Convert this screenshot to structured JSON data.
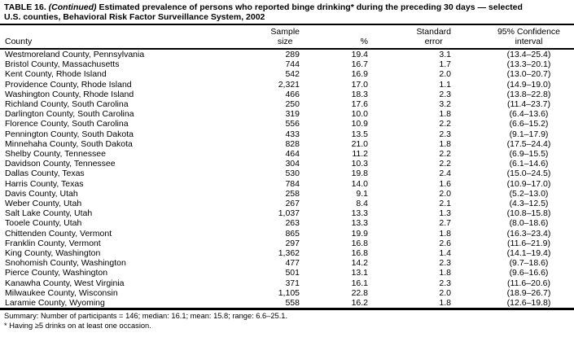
{
  "page": {
    "background": "#ffffff",
    "text_color": "#000000"
  },
  "title": {
    "part1": "TABLE 16. ",
    "continued": "(Continued)",
    "part3": " Estimated prevalence of persons who reported binge drinking* during the preceding 30 days — selected",
    "line2": "U.S. counties, Behavioral Risk Factor Surveillance System, 2002"
  },
  "columns": {
    "county": "County",
    "sample": [
      "Sample",
      "size"
    ],
    "percent": "%",
    "standard_error": [
      "Standard",
      "error"
    ],
    "confidence_interval": [
      "95% Confidence",
      "interval"
    ]
  },
  "rows": [
    {
      "county": "Westmoreland County, Pennsylvania",
      "sample": "289",
      "pct": "19.4",
      "se": "3.1",
      "ci": "(13.4–25.4)"
    },
    {
      "county": "Bristol County, Massachusetts",
      "sample": "744",
      "pct": "16.7",
      "se": "1.7",
      "ci": "(13.3–20.1)"
    },
    {
      "county": "Kent County, Rhode Island",
      "sample": "542",
      "pct": "16.9",
      "se": "2.0",
      "ci": "(13.0–20.7)"
    },
    {
      "county": "Providence County, Rhode Island",
      "sample": "2,321",
      "pct": "17.0",
      "se": "1.1",
      "ci": "(14.9–19.0)"
    },
    {
      "county": "Washington County, Rhode Island",
      "sample": "466",
      "pct": "18.3",
      "se": "2.3",
      "ci": "(13.8–22.8)"
    },
    {
      "county": "Richland County, South Carolina",
      "sample": "250",
      "pct": "17.6",
      "se": "3.2",
      "ci": "(11.4–23.7)"
    },
    {
      "county": "Darlington County, South Carolina",
      "sample": "319",
      "pct": "10.0",
      "se": "1.8",
      "ci": "(6.4–13.6)"
    },
    {
      "county": "Florence County, South Carolina",
      "sample": "556",
      "pct": "10.9",
      "se": "2.2",
      "ci": "(6.6–15.2)"
    },
    {
      "county": "Pennington County, South Dakota",
      "sample": "433",
      "pct": "13.5",
      "se": "2.3",
      "ci": "(9.1–17.9)"
    },
    {
      "county": "Minnehaha County, South Dakota",
      "sample": "828",
      "pct": "21.0",
      "se": "1.8",
      "ci": "(17.5–24.4)"
    },
    {
      "county": "Shelby County, Tennessee",
      "sample": "464",
      "pct": "11.2",
      "se": "2.2",
      "ci": "(6.9–15.5)"
    },
    {
      "county": "Davidson County, Tennessee",
      "sample": "304",
      "pct": "10.3",
      "se": "2.2",
      "ci": "(6.1–14.6)"
    },
    {
      "county": "Dallas County, Texas",
      "sample": "530",
      "pct": "19.8",
      "se": "2.4",
      "ci": "(15.0–24.5)"
    },
    {
      "county": "Harris County, Texas",
      "sample": "784",
      "pct": "14.0",
      "se": "1.6",
      "ci": "(10.9–17.0)"
    },
    {
      "county": "Davis County, Utah",
      "sample": "258",
      "pct": "9.1",
      "se": "2.0",
      "ci": "(5.2–13.0)"
    },
    {
      "county": "Weber County, Utah",
      "sample": "267",
      "pct": "8.4",
      "se": "2.1",
      "ci": "(4.3–12.5)"
    },
    {
      "county": "Salt Lake County, Utah",
      "sample": "1,037",
      "pct": "13.3",
      "se": "1.3",
      "ci": "(10.8–15.8)"
    },
    {
      "county": "Tooele County, Utah",
      "sample": "263",
      "pct": "13.3",
      "se": "2.7",
      "ci": "(8.0–18.6)"
    },
    {
      "county": "Chittenden County, Vermont",
      "sample": "865",
      "pct": "19.9",
      "se": "1.8",
      "ci": "(16.3–23.4)"
    },
    {
      "county": "Franklin County, Vermont",
      "sample": "297",
      "pct": "16.8",
      "se": "2.6",
      "ci": "(11.6–21.9)"
    },
    {
      "county": "King County, Washington",
      "sample": "1,362",
      "pct": "16.8",
      "se": "1.4",
      "ci": "(14.1–19.4)"
    },
    {
      "county": "Snohomish County, Washington",
      "sample": "477",
      "pct": "14.2",
      "se": "2.3",
      "ci": "(9.7–18.6)"
    },
    {
      "county": "Pierce County, Washington",
      "sample": "501",
      "pct": "13.1",
      "se": "1.8",
      "ci": "(9.6–16.6)"
    },
    {
      "county": "Kanawha County, West Virginia",
      "sample": "371",
      "pct": "16.1",
      "se": "2.3",
      "ci": "(11.6–20.6)"
    },
    {
      "county": "Milwaukee County, Wisconsin",
      "sample": "1,105",
      "pct": "22.8",
      "se": "2.0",
      "ci": "(18.9–26.7)"
    },
    {
      "county": "Laramie County, Wyoming",
      "sample": "558",
      "pct": "16.2",
      "se": "1.8",
      "ci": "(12.6–19.8)"
    }
  ],
  "summary": "Summary: Number of participants = 146; median: 16.1; mean: 15.8; range: 6.6–25.1.",
  "footnote": "* Having ≥5 drinks on at least one occasion."
}
